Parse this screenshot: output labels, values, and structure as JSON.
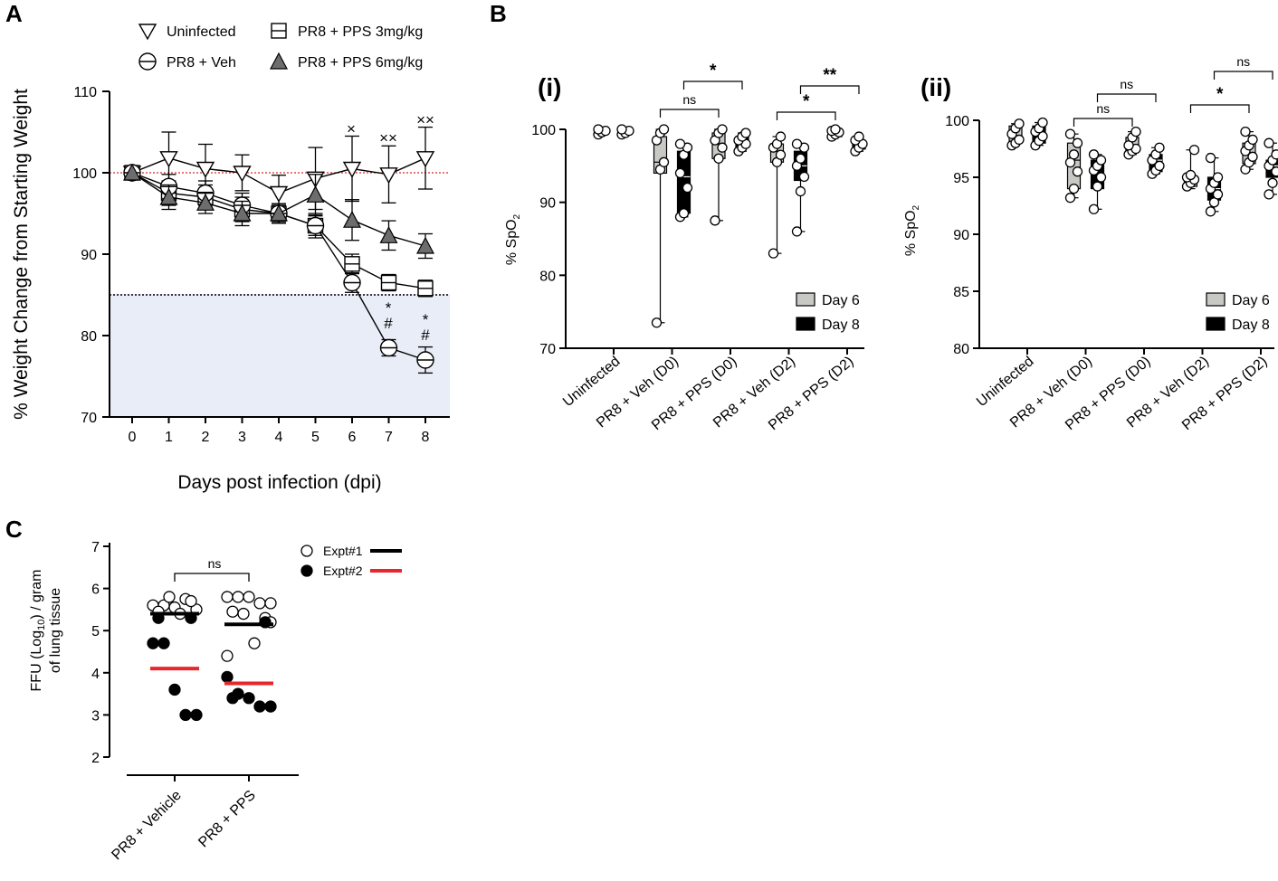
{
  "colors": {
    "shade": "#e9edf7",
    "threshold": "#000000",
    "baseline": "#d62728",
    "day6": "#c8c8c4",
    "day8": "#000000",
    "expt1": "#000000",
    "expt2": "#e8262b",
    "tri6": "#6d6d6d"
  },
  "panelA": {
    "label": "A",
    "ylabel": "% Weight Change from Starting Weight",
    "xlabel": "Days post infection (dpi)",
    "yticks": [
      "70",
      "80",
      "90",
      "100",
      "110"
    ],
    "xticks": [
      "0",
      "1",
      "2",
      "3",
      "4",
      "5",
      "6",
      "7",
      "8"
    ],
    "legend": [
      "Uninfected",
      "PR8 + Veh",
      "PR8 + PPS 3mg/kg",
      "PR8 + PPS 6mg/kg"
    ],
    "marks": {
      "d6_top": "×",
      "d7_top": "××",
      "d8_top": "××",
      "star": "*",
      "hash": "#"
    }
  },
  "panelB": {
    "label": "B",
    "sub_i": "(i)",
    "sub_ii": "(ii)",
    "ylabel": "% SpO",
    "ysub": "2",
    "groups": [
      "Uninfected",
      "PR8 + Veh (D0)",
      "PR8 + PPS (D0)",
      "PR8 + Veh (D2)",
      "PR8 + PPS (D2)"
    ],
    "legend": [
      "Day 6",
      "Day 8"
    ],
    "yticks_i": [
      "70",
      "80",
      "90",
      "100"
    ],
    "yticks_ii": [
      "80",
      "85",
      "90",
      "95",
      "100"
    ],
    "sig_i": [
      "ns",
      "*",
      "*",
      "**"
    ],
    "sig_ii": [
      "ns",
      "ns",
      "*",
      "ns"
    ]
  },
  "panelC": {
    "label": "C",
    "ylabel_line1": "FFU (Log",
    "ylabel_sub": "10",
    "ylabel_line1b": ") / gram",
    "ylabel_line2": "of lung tissue",
    "yticks": [
      "2",
      "3",
      "4",
      "5",
      "6",
      "7"
    ],
    "groups": [
      "PR8 + Vehicle",
      "PR8 + PPS"
    ],
    "sig": "ns",
    "legend": [
      "Expt#1",
      "Expt#2"
    ]
  },
  "chart_data": [
    {
      "type": "line",
      "title": "A",
      "xlabel": "Days post infection (dpi)",
      "ylabel": "% Weight Change from Starting Weight",
      "ylim": [
        70,
        110
      ],
      "x": [
        0,
        1,
        2,
        3,
        4,
        5,
        6,
        7,
        8
      ],
      "reference_lines": [
        100,
        85
      ],
      "series": [
        {
          "name": "Uninfected",
          "values": [
            100,
            101.8,
            100.5,
            100,
            97.5,
            99.3,
            100.5,
            99.8,
            101.8
          ],
          "err": [
            0,
            3.2,
            3,
            2.2,
            2.2,
            3.8,
            4,
            3.5,
            3.8
          ]
        },
        {
          "name": "PR8 + Veh",
          "values": [
            100,
            98.3,
            97.5,
            96,
            95,
            93.5,
            86.5,
            78.5,
            77
          ],
          "err": [
            0,
            1.5,
            1.5,
            1.5,
            1.2,
            1.5,
            1.2,
            1,
            1.6
          ]
        },
        {
          "name": "PR8 + PPS 3mg/kg",
          "values": [
            100,
            97.5,
            97,
            95.5,
            95,
            93.5,
            88.8,
            86.5,
            85.8
          ],
          "err": [
            0,
            1.5,
            1.5,
            1.5,
            1.2,
            1.2,
            1.2,
            1,
            1
          ]
        },
        {
          "name": "PR8 + PPS 6mg/kg",
          "values": [
            100,
            97,
            96.3,
            95,
            95,
            97.3,
            94.2,
            92.3,
            91
          ],
          "err": [
            0,
            1.5,
            1.3,
            1.5,
            1,
            2.5,
            2.5,
            1.8,
            1.5
          ]
        }
      ]
    },
    {
      "type": "box",
      "title": "B (i)",
      "ylabel": "% SpO2",
      "ylim": [
        70,
        100
      ],
      "categories": [
        "Uninfected",
        "PR8 + Veh (D0)",
        "PR8 + PPS (D0)",
        "PR8 + Veh (D2)",
        "PR8 + PPS (D2)"
      ],
      "series": [
        {
          "name": "Day 6",
          "boxes": [
            [
              99.3,
              99.5,
              99.8,
              100,
              100
            ],
            [
              73.5,
              94,
              95.5,
              99,
              100
            ],
            [
              87.5,
              96,
              98,
              99.5,
              100
            ],
            [
              83,
              95.5,
              97,
              98,
              99
            ],
            [
              99,
              99,
              99.5,
              100,
              100
            ]
          ],
          "points": [
            [
              99.3,
              99.6,
              99.8,
              100
            ],
            [
              73.5,
              94.5,
              95.5,
              98.5,
              99.5,
              100
            ],
            [
              87.5,
              96,
              97.5,
              98.5,
              99.5,
              100
            ],
            [
              83,
              95.5,
              96.5,
              97.5,
              98,
              99
            ],
            [
              99,
              99.3,
              99.6,
              99.8,
              100
            ]
          ]
        },
        {
          "name": "Day 8",
          "boxes": [
            [
              99.3,
              99.3,
              99.6,
              100,
              100
            ],
            [
              88,
              88.5,
              93.5,
              97,
              98
            ],
            [
              97,
              97.5,
              98.5,
              99,
              99.5
            ],
            [
              86,
              93,
              95,
              97,
              98
            ],
            [
              97,
              97.3,
              98,
              98.5,
              99
            ]
          ],
          "points": [
            [
              99.3,
              99.5,
              99.8,
              100
            ],
            [
              88,
              88.5,
              92,
              94,
              96.5,
              97.5,
              98
            ],
            [
              97,
              97.5,
              98,
              98.5,
              99,
              99.5
            ],
            [
              86,
              91.5,
              93.5,
              95,
              96,
              97.5,
              98
            ],
            [
              97,
              97.5,
              98,
              98.5,
              99
            ]
          ]
        }
      ]
    },
    {
      "type": "box",
      "title": "B (ii)",
      "ylabel": "% SpO2",
      "ylim": [
        80,
        100
      ],
      "categories": [
        "Uninfected",
        "PR8 + Veh (D0)",
        "PR8 + PPS (D0)",
        "PR8 + Veh (D2)",
        "PR8 + PPS (D2)"
      ],
      "series": [
        {
          "name": "Day 6",
          "boxes": [
            [
              97.8,
              98,
              98.5,
              99.5,
              99.7
            ],
            [
              93.2,
              94,
              96.5,
              98,
              98.8
            ],
            [
              97,
              97.3,
              97.8,
              98.5,
              99
            ],
            [
              94,
              94.2,
              94.8,
              95,
              97.4
            ],
            [
              95.7,
              96.2,
              97,
              98,
              99
            ]
          ],
          "points": [
            [
              97.8,
              98,
              98.3,
              98.8,
              99.3,
              99.7
            ],
            [
              93.2,
              94,
              95.5,
              96.3,
              97,
              98,
              98.8
            ],
            [
              97,
              97.3,
              97.5,
              97.8,
              98.5,
              99
            ],
            [
              94.2,
              94.5,
              94.8,
              95,
              95.2,
              97.4
            ],
            [
              95.7,
              96.3,
              96.8,
              97.3,
              97.8,
              98.3,
              99
            ]
          ]
        },
        {
          "name": "Day 8",
          "boxes": [
            [
              97.8,
              98,
              98.8,
              99.5,
              99.8
            ],
            [
              92.2,
              94,
              95.3,
              96.5,
              97
            ],
            [
              95.3,
              95.5,
              96.5,
              97,
              97.6
            ],
            [
              92,
              93,
              94,
              95,
              96.7
            ],
            [
              93.5,
              95,
              96,
              96.5,
              98
            ]
          ],
          "points": [
            [
              97.8,
              98.2,
              98.6,
              99,
              99.3,
              99.8
            ],
            [
              92.2,
              94.2,
              95,
              95.6,
              96,
              96.5,
              97
            ],
            [
              95.3,
              95.6,
              96,
              96.5,
              97,
              97.6
            ],
            [
              92,
              92.8,
              93.5,
              94,
              94.5,
              95,
              96.7
            ],
            [
              93.5,
              94.5,
              95.5,
              96,
              96.5,
              97,
              98
            ]
          ]
        }
      ]
    },
    {
      "type": "scatter",
      "title": "C",
      "ylabel": "FFU (Log10) / gram of lung tissue",
      "ylim": [
        2,
        7
      ],
      "categories": [
        "PR8 + Vehicle",
        "PR8 + PPS"
      ],
      "series": [
        {
          "name": "Expt#1",
          "mean": [
            5.4,
            5.15
          ],
          "values": [
            [
              5.6,
              5.6,
              5.55,
              5.75,
              5.5,
              5.45,
              5.7,
              5.8,
              5.4
            ],
            [
              5.8,
              5.8,
              5.8,
              5.65,
              5.65,
              5.45,
              5.3,
              5.4,
              4.7,
              4.4,
              5.2
            ]
          ]
        },
        {
          "name": "Expt#2",
          "mean": [
            4.1,
            3.75
          ],
          "values": [
            [
              4.7,
              4.7,
              3.6,
              3.0,
              3.0,
              5.3,
              5.3
            ],
            [
              3.9,
              3.5,
              3.4,
              3.2,
              3.2,
              3.4,
              5.2
            ]
          ]
        }
      ]
    }
  ]
}
